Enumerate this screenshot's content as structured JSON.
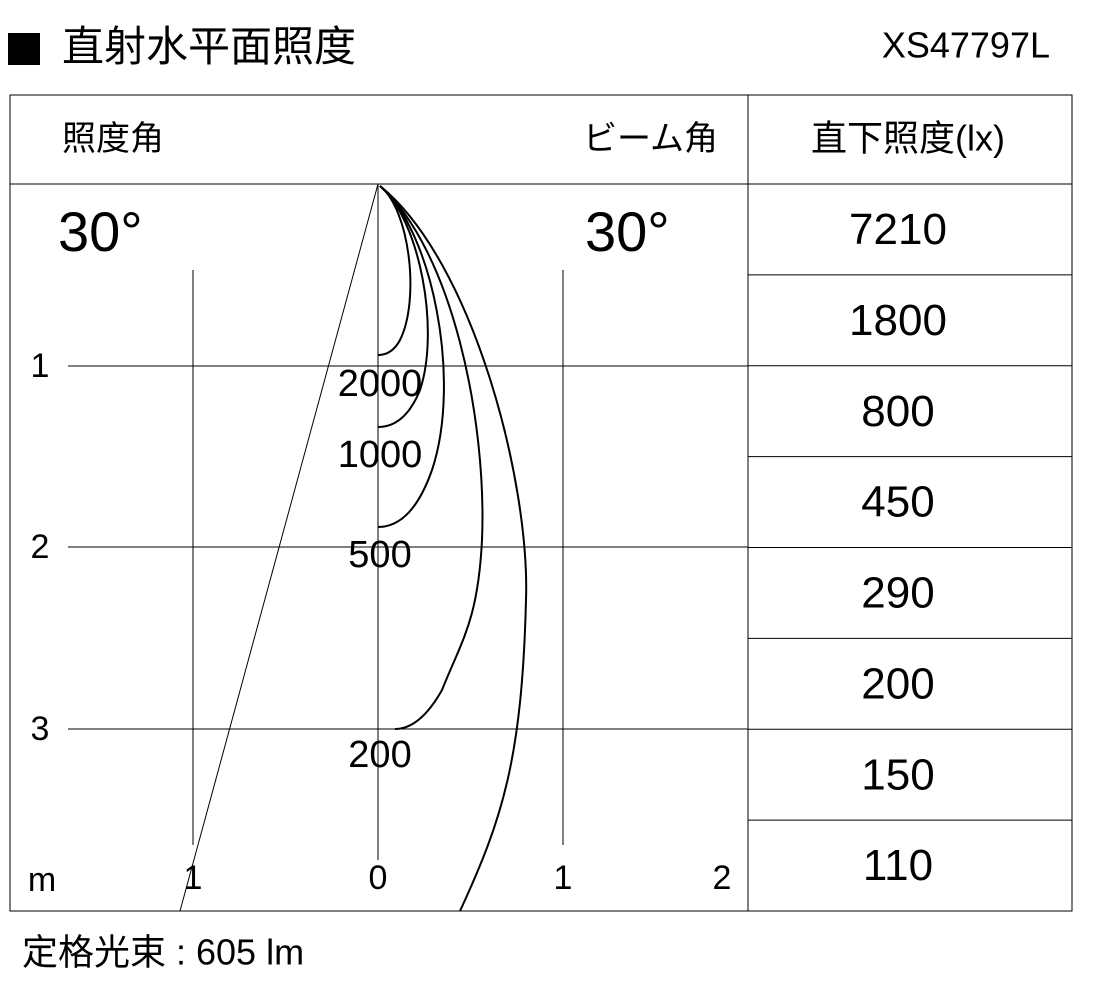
{
  "header": {
    "title": "直射水平面照度",
    "model": "XS47797L"
  },
  "columns": {
    "illuminance_angle": "照度角",
    "beam_angle": "ビーム角",
    "direct_illuminance": "直下照度(lx)"
  },
  "angles": {
    "illuminance": "30°",
    "beam": "30°"
  },
  "table": {
    "rows": [
      "7210",
      "1800",
      "800",
      "450",
      "290",
      "200",
      "150",
      "110"
    ]
  },
  "axes": {
    "depth": [
      "1",
      "2",
      "3"
    ],
    "unit": "m",
    "width": [
      "1",
      "0",
      "1",
      "2"
    ]
  },
  "contours": [
    "2000",
    "1000",
    "500",
    "200"
  ],
  "footer": {
    "lumen": "定格光束 : 605 lm"
  }
}
